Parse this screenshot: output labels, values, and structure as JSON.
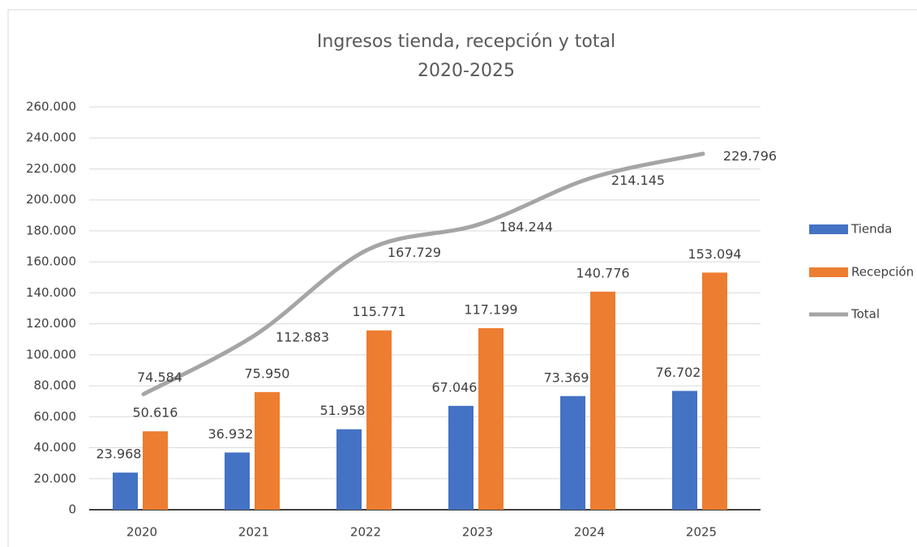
{
  "chart_data": {
    "type": "bar-line",
    "title": "Ingresos tienda, recepción y total",
    "subtitle": "2020-2025",
    "categories": [
      "2020",
      "2021",
      "2022",
      "2023",
      "2024",
      "2025"
    ],
    "series": [
      {
        "name": "Tienda",
        "color": "#4472c4",
        "type": "bar",
        "values": [
          23968,
          36932,
          51958,
          67046,
          73369,
          76702
        ],
        "value_labels": [
          "23.968",
          "36.932",
          "51.958",
          "67.046",
          "73.369",
          "76.702"
        ]
      },
      {
        "name": "Recepción",
        "color": "#ed7d31",
        "type": "bar",
        "values": [
          50616,
          75950,
          115771,
          117199,
          140776,
          153094
        ],
        "value_labels": [
          "50.616",
          "75.950",
          "115.771",
          "117.199",
          "140.776",
          "153.094"
        ]
      },
      {
        "name": "Total",
        "color": "#a5a5a5",
        "type": "line",
        "values": [
          74584,
          112883,
          167729,
          184244,
          214145,
          229796
        ],
        "value_labels": [
          "74.584",
          "112.883",
          "167.729",
          "184.244",
          "214.145",
          "229.796"
        ]
      }
    ],
    "ylim": [
      0,
      260000
    ],
    "yticks": [
      0,
      {
        "value": 20000,
        "label": "20.000"
      },
      {
        "value": 40000,
        "label": "40.000"
      },
      {
        "value": 60000,
        "label": "60.000"
      },
      {
        "value": 80000,
        "label": "80.000"
      },
      {
        "value": 100000,
        "label": "100.000"
      },
      {
        "value": 120000,
        "label": "120.000"
      },
      {
        "value": 140000,
        "label": "140.000"
      },
      {
        "value": 160000,
        "label": "160.000"
      },
      {
        "value": 180000,
        "label": "180.000"
      },
      {
        "value": 200000,
        "label": "200.000"
      },
      {
        "value": 220000,
        "label": "220.000"
      },
      {
        "value": 240000,
        "label": "240.000"
      },
      {
        "value": 260000,
        "label": "260.000"
      }
    ],
    "grid": true,
    "legend": "right"
  }
}
